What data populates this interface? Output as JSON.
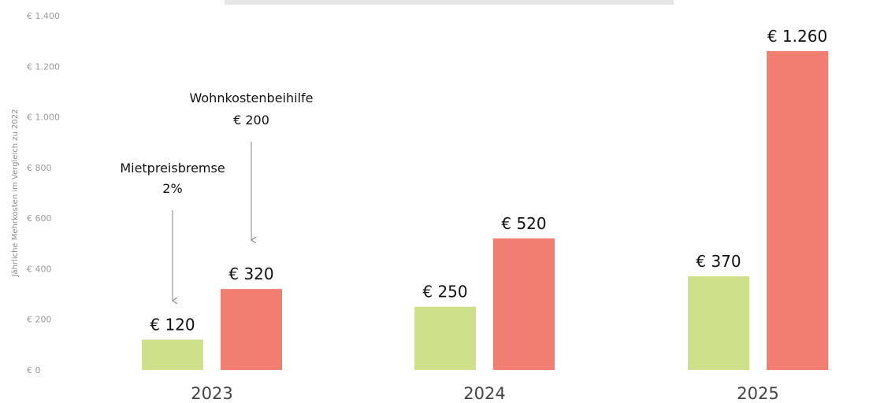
{
  "chart_data": {
    "type": "bar",
    "title": "",
    "ylabel": "Jährliche Mehrkosten im Vergleich zu 2022",
    "xlabel": "",
    "categories": [
      "2023",
      "2024",
      "2025"
    ],
    "ylim": [
      0,
      1400
    ],
    "yticks": [
      0,
      200,
      400,
      600,
      800,
      1000,
      1200,
      1400
    ],
    "ytick_labels": [
      "€ 0",
      "€ 200",
      "€ 400",
      "€ 600",
      "€ 800",
      "€ 1.000",
      "€ 1.200",
      "€ 1.400"
    ],
    "grid": false,
    "legend": "none",
    "series": [
      {
        "values": [
          120,
          250,
          370
        ],
        "labels": [
          "€ 120",
          "€ 250",
          "€ 370"
        ],
        "color": "#cfe08a"
      },
      {
        "values": [
          320,
          520,
          1260
        ],
        "labels": [
          "€ 320",
          "€ 520",
          "€ 1.260"
        ],
        "color": "#f07f72"
      }
    ],
    "annotations": [
      {
        "series": 0,
        "category": "2023",
        "lines": [
          "Mietpreisbremse",
          "2%"
        ]
      },
      {
        "series": 1,
        "category": "2023",
        "lines": [
          "Wohnkostenbeihilfe",
          "€ 200"
        ]
      }
    ]
  }
}
